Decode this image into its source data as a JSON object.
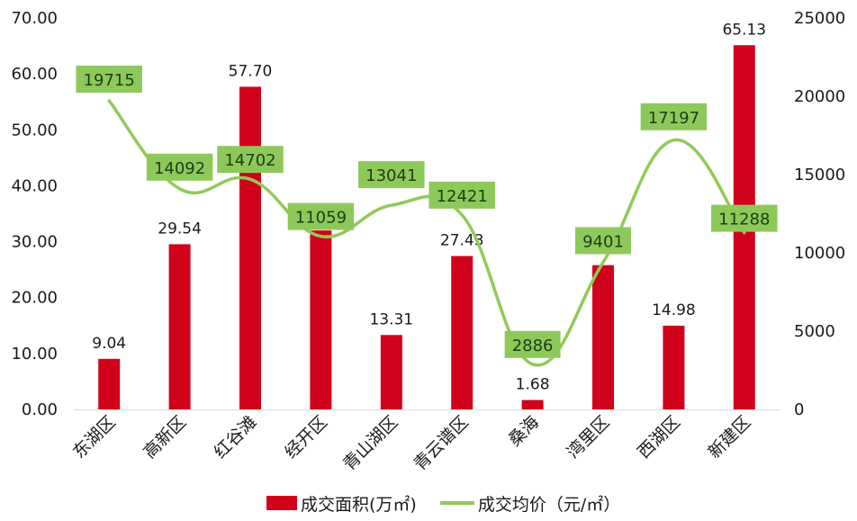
{
  "chart_data": {
    "type": "bar+line",
    "title": "",
    "categories": [
      "东湖区",
      "高新区",
      "红谷滩",
      "经开区",
      "青山湖区",
      "青云谱区",
      "桑海",
      "湾里区",
      "西湖区",
      "新建区"
    ],
    "series": [
      {
        "name": "成交面积(万㎡)",
        "type": "bar",
        "axis": "left",
        "color": "#d0021b",
        "values": [
          9.04,
          29.54,
          57.7,
          32.0,
          13.31,
          27.43,
          1.68,
          25.8,
          14.98,
          65.13
        ],
        "labels": [
          "9.04",
          "29.54",
          "57.70",
          "",
          "13.31",
          "27.43",
          "1.68",
          "",
          "14.98",
          "65.13"
        ]
      },
      {
        "name": "成交均价（元/㎡）",
        "type": "line",
        "smooth": true,
        "axis": "right",
        "color": "#92c95a",
        "values": [
          19715,
          14092,
          14702,
          11059,
          13041,
          12421,
          2886,
          9401,
          17197,
          11288
        ],
        "labels": [
          "19715",
          "14092",
          "14702",
          "11059",
          "13041",
          "12421",
          "2886",
          "9401",
          "17197",
          "11288"
        ]
      }
    ],
    "y_left": {
      "ticks": [
        "0.00",
        "10.00",
        "20.00",
        "30.00",
        "40.00",
        "50.00",
        "60.00",
        "70.00"
      ],
      "ylim": [
        0,
        70
      ]
    },
    "y_right": {
      "ticks": [
        "0",
        "5000",
        "10000",
        "15000",
        "20000",
        "25000"
      ],
      "ylim": [
        0,
        25000
      ]
    },
    "xlabel": "",
    "ylabel": "",
    "grid": false,
    "legend_position": "bottom"
  },
  "legend": {
    "bar_label": "成交面积(万㎡)",
    "line_label": "成交均价（元/㎡）"
  }
}
